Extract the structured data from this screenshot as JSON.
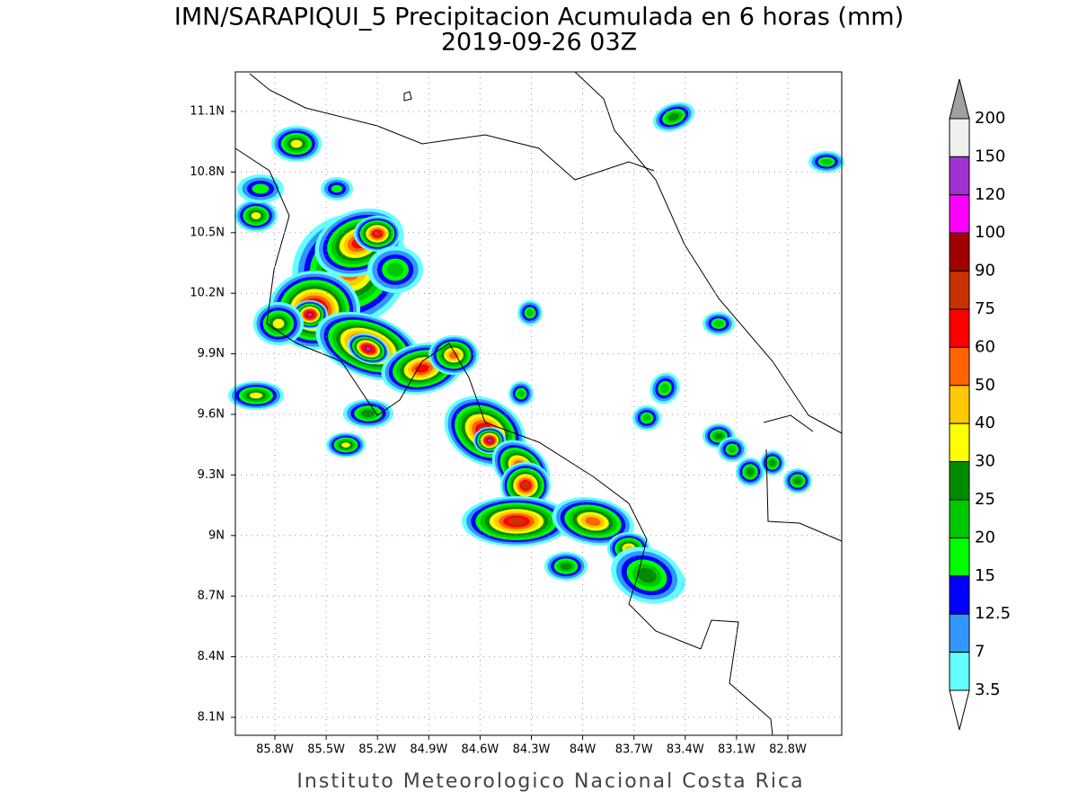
{
  "header": {
    "title": "IMN/SARAPIQUI_5 Precipitacion Acumulada en 6 horas (mm)",
    "subtitle": "2019-09-26 03Z"
  },
  "map": {
    "lat_labels": [
      "11.1N",
      "10.8N",
      "10.5N",
      "10.2N",
      "9.9N",
      "9.6N",
      "9.3N",
      "9N",
      "8.7N",
      "8.4N",
      "8.1N"
    ],
    "lon_labels": [
      "85.8W",
      "85.5W",
      "85.2W",
      "84.9W",
      "84.6W",
      "84.3W",
      "84W",
      "83.7W",
      "83.4W",
      "83.1W",
      "82.8W"
    ]
  },
  "legend": {
    "labels": [
      "200",
      "150",
      "120",
      "100",
      "90",
      "75",
      "60",
      "50",
      "40",
      "30",
      "25",
      "20",
      "15",
      "12.5",
      "7",
      "3.5"
    ],
    "colors": [
      "#f0f0f0",
      "#a032d2",
      "#ff00ff",
      "#a00000",
      "#c83200",
      "#ff0000",
      "#ff6400",
      "#ffc800",
      "#ffff00",
      "#008c00",
      "#00c800",
      "#00ff00",
      "#0000ff",
      "#3296ff",
      "#64ffff"
    ],
    "over_color": "#a0a0a0",
    "under_color": "#ffffff"
  },
  "footer": {
    "credit": "Instituto Meteorologico Nacional Costa Rica"
  }
}
